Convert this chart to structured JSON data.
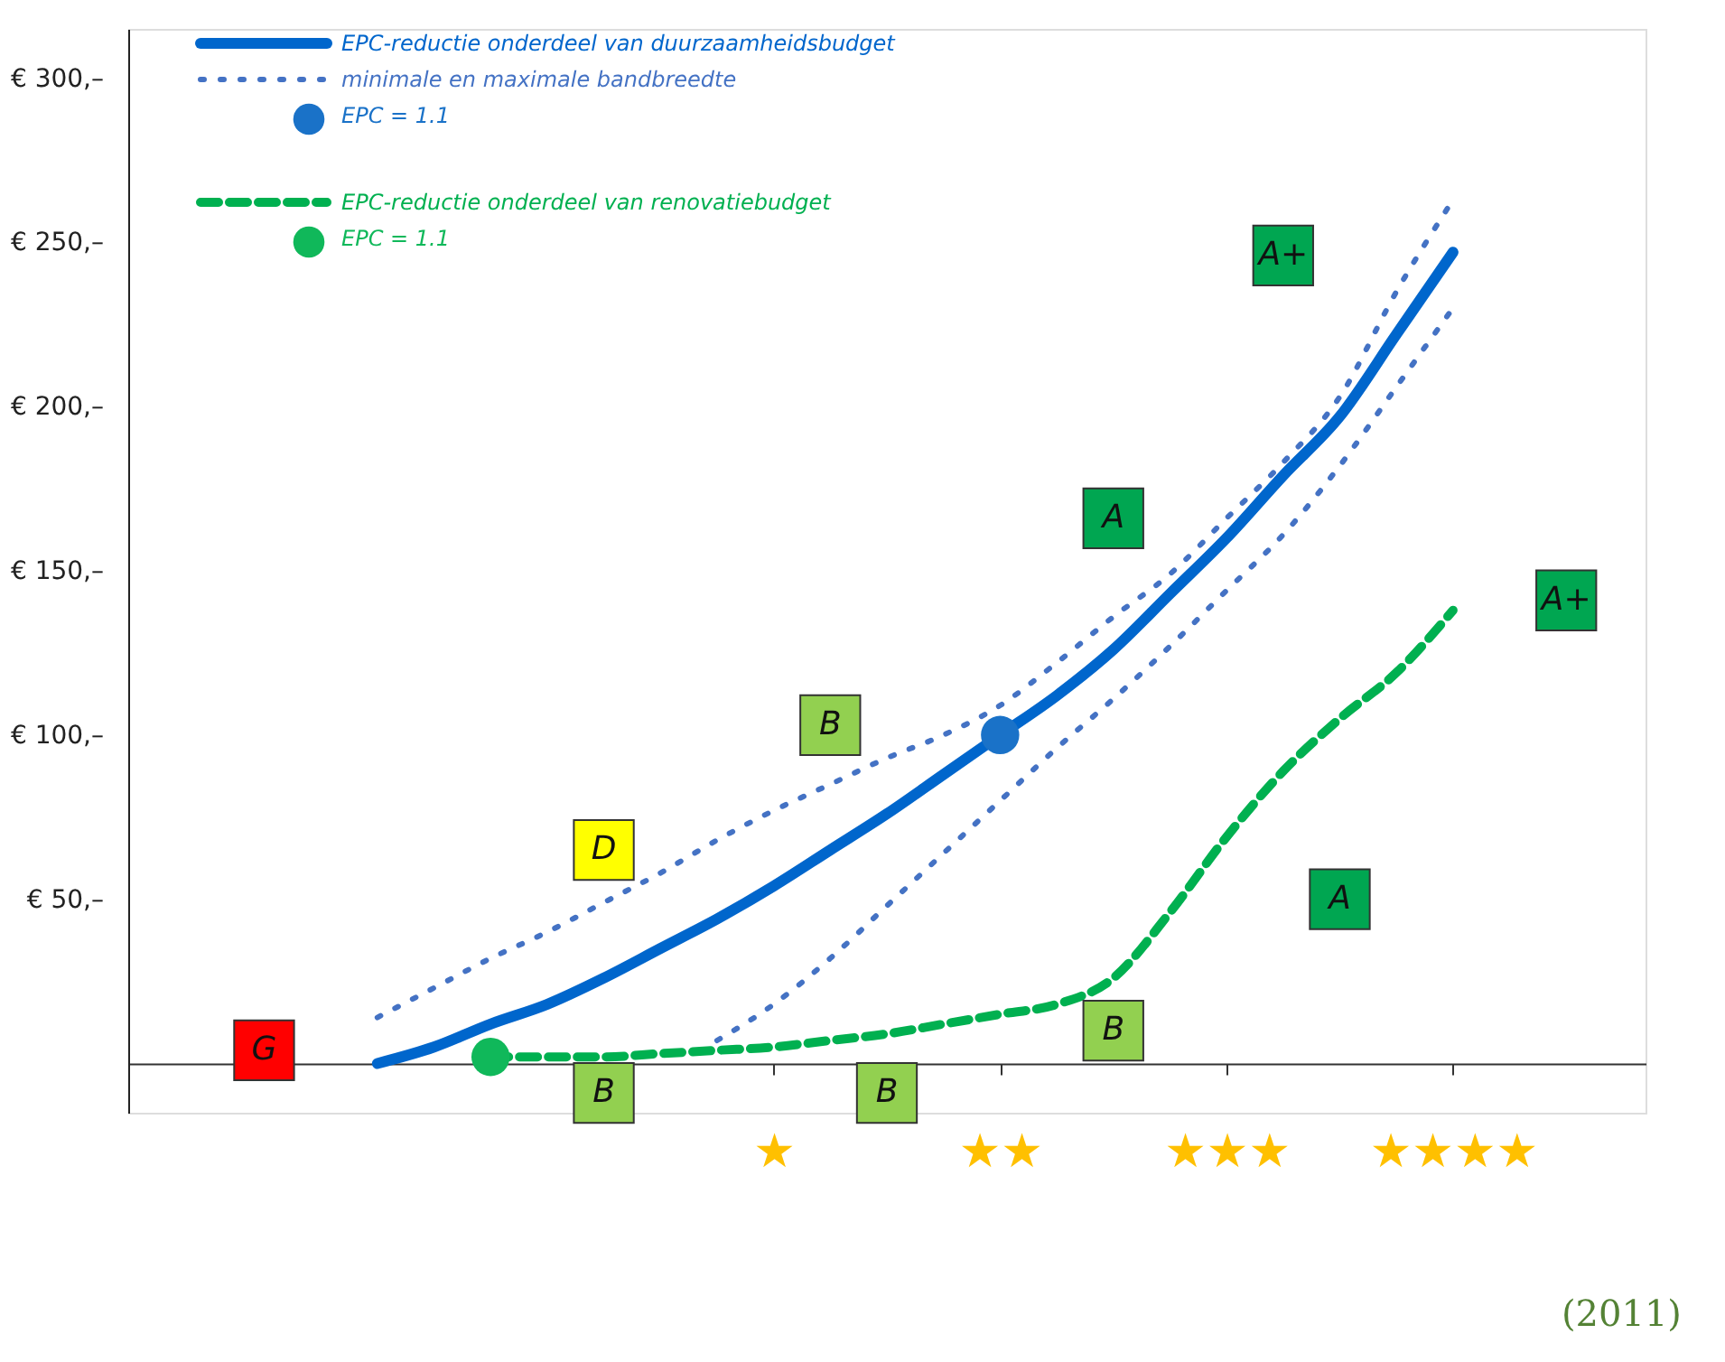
{
  "chart_data": {
    "type": "line",
    "categories": [
      null,
      null,
      null,
      null,
      null,
      null,
      null,
      null,
      null,
      null,
      null,
      "★",
      null,
      null,
      null,
      "★★",
      null,
      null,
      null,
      "★★★",
      null,
      null,
      null,
      "★★★★",
      null,
      null,
      null
    ],
    "ylim": [
      -15,
      315
    ],
    "yticks": [
      {
        "value": 50,
        "label": "€ 50,–"
      },
      {
        "value": 100,
        "label": "€ 100,–"
      },
      {
        "value": 150,
        "label": "€ 150,–"
      },
      {
        "value": 200,
        "label": "€ 200,–"
      },
      {
        "value": 250,
        "label": "€ 250,–"
      },
      {
        "value": 300,
        "label": "€ 300,–"
      }
    ],
    "grid": false,
    "legend": "top left",
    "annotations": [
      "(2011)"
    ],
    "series": [
      {
        "name": "EPC-reductie onderdeel van duurzaamheidsbudget",
        "line_style": "solid",
        "color": "#0066cc",
        "values": [
          null,
          null,
          null,
          null,
          0,
          5,
          12,
          18,
          26,
          35,
          44,
          54,
          65,
          76,
          88,
          100,
          112,
          126,
          143,
          160,
          179,
          197,
          222,
          247,
          null,
          null,
          null
        ]
      },
      {
        "name": "minimale en maximale bandbreedte",
        "line_style": "dotted",
        "color": "#4472c4",
        "values": [
          null,
          null,
          null,
          null,
          14,
          23,
          32,
          40,
          49,
          58,
          68,
          77,
          85,
          93,
          100,
          109,
          122,
          136,
          149,
          166,
          183,
          203,
          235,
          263,
          null,
          null,
          null
        ]
      },
      {
        "line_style": "dotted",
        "color": "#4472c4",
        "values": [
          null,
          null,
          null,
          null,
          null,
          null,
          null,
          null,
          null,
          null,
          7,
          18,
          32,
          48,
          64,
          80,
          96,
          111,
          127,
          144,
          161,
          182,
          206,
          230,
          null,
          null,
          null
        ]
      },
      {
        "name": "EPC = 1.1",
        "type": "scatter",
        "marker": "circle",
        "color": "#1a72c8",
        "values": [
          null,
          null,
          null,
          null,
          null,
          null,
          null,
          null,
          null,
          null,
          null,
          null,
          null,
          null,
          null,
          100,
          null,
          null,
          null,
          null,
          null,
          null,
          null,
          null,
          null,
          null,
          null
        ]
      },
      {
        "name": "EPC-reductie onderdeel van renovatiebudget",
        "line_style": "dashed",
        "color": "#00b050",
        "values": [
          null,
          null,
          null,
          null,
          null,
          null,
          2,
          2,
          2,
          3,
          4,
          5,
          7,
          9,
          12,
          15,
          18,
          26,
          46,
          69,
          89,
          105,
          119,
          138,
          null,
          null,
          null
        ]
      },
      {
        "name": "EPC = 1.1",
        "type": "scatter",
        "marker": "circle",
        "color": "#10b85a",
        "values": [
          null,
          null,
          null,
          null,
          null,
          null,
          2,
          null,
          null,
          null,
          null,
          null,
          null,
          null,
          null,
          null,
          null,
          null,
          null,
          null,
          null,
          null,
          null,
          null,
          null,
          null,
          null
        ]
      },
      {
        "type": "scatter",
        "marker": "square",
        "values": [
          null,
          null,
          4,
          null,
          null,
          null,
          null,
          null,
          65,
          null,
          null,
          null,
          103,
          null,
          null,
          null,
          null,
          166,
          null,
          null,
          246,
          null,
          null,
          null,
          null,
          null,
          null
        ],
        "colors": [
          null,
          null,
          "#ff0000",
          null,
          null,
          null,
          null,
          null,
          "#ffff00",
          null,
          null,
          null,
          "#92d050",
          null,
          null,
          null,
          null,
          "#00a651",
          null,
          null,
          "#00a651",
          null,
          null,
          null,
          null,
          null,
          null
        ],
        "value_labels": [
          null,
          null,
          "G",
          null,
          null,
          null,
          null,
          null,
          "D",
          null,
          null,
          null,
          "B",
          null,
          null,
          null,
          null,
          "A",
          null,
          null,
          "A+",
          null,
          null,
          null,
          null,
          null,
          null
        ]
      },
      {
        "type": "scatter",
        "marker": "square",
        "values": [
          null,
          null,
          null,
          null,
          null,
          null,
          null,
          null,
          -9,
          null,
          null,
          null,
          null,
          -9,
          null,
          null,
          null,
          10,
          null,
          null,
          null,
          50,
          null,
          null,
          null,
          141,
          null
        ],
        "colors": [
          null,
          null,
          null,
          null,
          null,
          null,
          null,
          null,
          "#92d050",
          null,
          null,
          null,
          null,
          "#92d050",
          null,
          null,
          null,
          "#92d050",
          null,
          null,
          null,
          "#00a651",
          null,
          null,
          null,
          "#00a651",
          null
        ],
        "value_labels": [
          null,
          null,
          null,
          null,
          null,
          null,
          null,
          null,
          "B",
          null,
          null,
          null,
          null,
          "B",
          null,
          null,
          null,
          "B",
          null,
          null,
          null,
          "A",
          null,
          null,
          null,
          "A+",
          null
        ]
      }
    ]
  }
}
